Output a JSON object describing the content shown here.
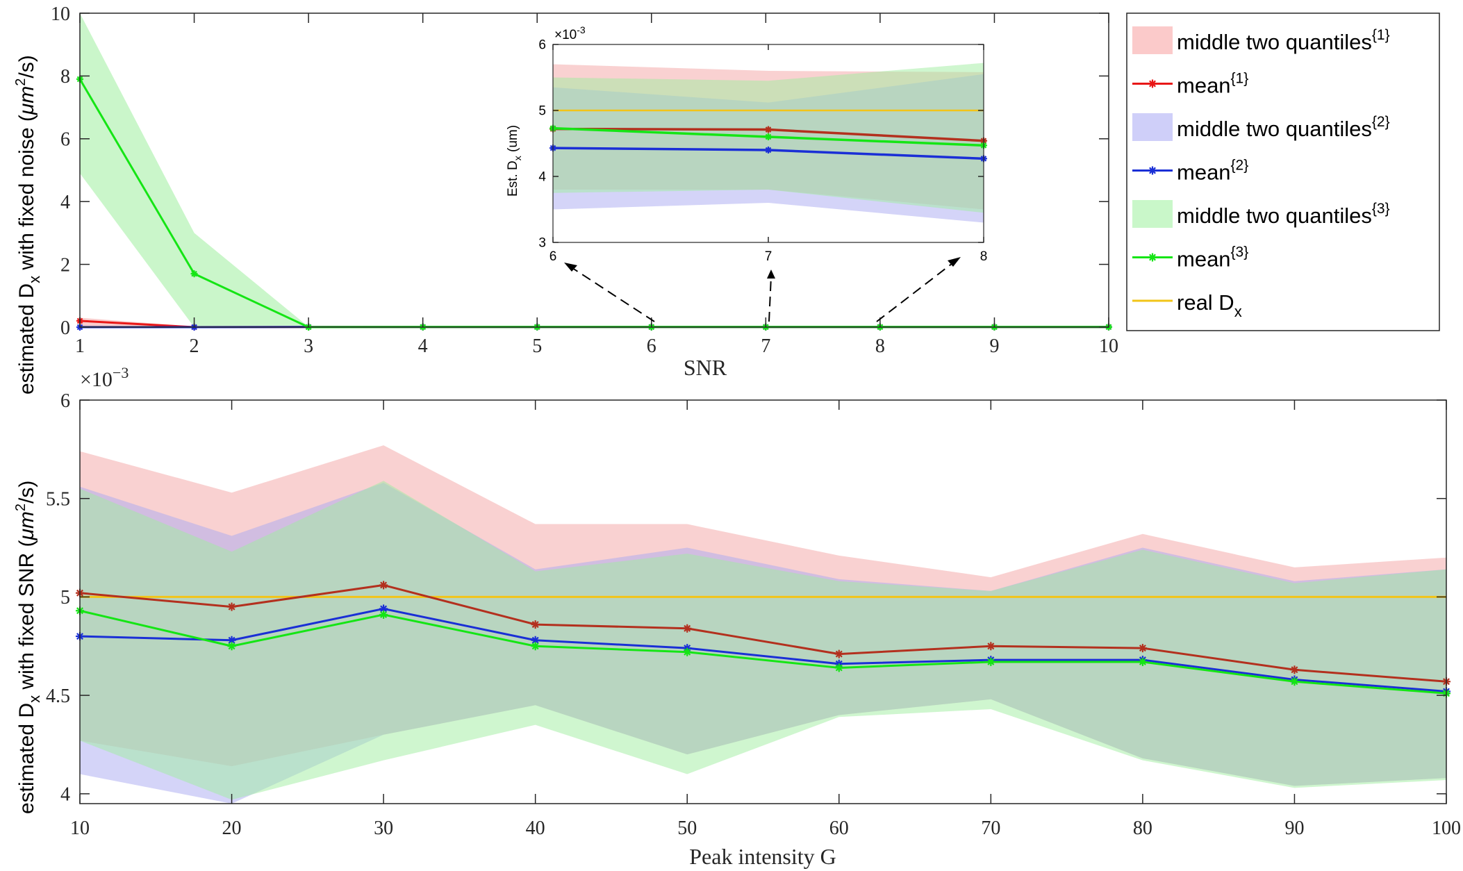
{
  "chart_data": [
    {
      "id": "top",
      "type": "line",
      "xlabel": "SNR",
      "ylabel": "estimated D",
      "ylabel_sub": "x",
      "ylabel_rest": " with fixed noise (",
      "ylabel_unit": "μm",
      "ylabel_unit_sup": "2",
      "ylabel_unit_end": "/s)",
      "xlim": [
        1,
        10
      ],
      "ylim": [
        0,
        10
      ],
      "xticks": [
        "1",
        "2",
        "3",
        "4",
        "5",
        "6",
        "7",
        "8",
        "9",
        "10"
      ],
      "yticks": [
        "0",
        "2",
        "4",
        "6",
        "8",
        "10"
      ],
      "x": [
        1,
        2,
        3,
        4,
        5,
        6,
        7,
        8,
        9,
        10
      ],
      "bands": [
        {
          "name": "middle two quantiles{1}",
          "color": "#f4a3a3",
          "lower": [
            0,
            0,
            0,
            0,
            0,
            0,
            0,
            0,
            0,
            0
          ],
          "upper": [
            0.3,
            0.02,
            0.01,
            0.01,
            0.01,
            0.01,
            0.01,
            0.01,
            0.01,
            0.01
          ]
        },
        {
          "name": "middle two quantiles{2}",
          "color": "#a9a9f2",
          "lower": [
            0,
            0,
            0,
            0,
            0,
            0,
            0,
            0,
            0,
            0
          ],
          "upper": [
            0.05,
            0.01,
            0.01,
            0.01,
            0.01,
            0.01,
            0.01,
            0.01,
            0.01,
            0.01
          ]
        },
        {
          "name": "middle two quantiles{3}",
          "color": "#9fee9f",
          "lower": [
            4.9,
            0,
            0,
            0,
            0,
            0,
            0,
            0,
            0,
            0
          ],
          "upper": [
            10.2,
            3.0,
            0.01,
            0.01,
            0.01,
            0.01,
            0.01,
            0.01,
            0.01,
            0.01
          ]
        }
      ],
      "series": [
        {
          "name": "mean{1}",
          "color": "#e81717",
          "values": [
            0.2,
            0.0,
            0.005,
            0.005,
            0.005,
            0.005,
            0.005,
            0.005,
            0.005,
            0.005
          ]
        },
        {
          "name": "mean{2}",
          "color": "#1a2fd6",
          "values": [
            0.0,
            0.0,
            0.005,
            0.005,
            0.005,
            0.005,
            0.005,
            0.005,
            0.005,
            0.005
          ]
        },
        {
          "name": "mean{3}",
          "color": "#15e515",
          "values": [
            7.9,
            1.7,
            0.0,
            0.005,
            0.005,
            0.005,
            0.005,
            0.005,
            0.005,
            0.005
          ]
        }
      ],
      "reference": {
        "name": "real Dx",
        "color": "#f2c418",
        "value": 0.005
      }
    },
    {
      "id": "inset",
      "type": "line",
      "ylabel": "Est. D",
      "ylabel_sub": "x",
      "ylabel_rest": "  (um)",
      "exponent": "×10",
      "exponent_power": "-3",
      "xlim": [
        6,
        8
      ],
      "ylim": [
        3,
        6
      ],
      "xticks": [
        "6",
        "7",
        "8"
      ],
      "yticks": [
        "3",
        "4",
        "5",
        "6"
      ],
      "x": [
        6,
        7,
        8
      ],
      "bands": [
        {
          "name": "middle two quantiles{1}",
          "color": "#f4a3a3",
          "lower": [
            3.8,
            3.8,
            3.5
          ],
          "upper": [
            5.7,
            5.6,
            5.58
          ]
        },
        {
          "name": "middle two quantiles{2}",
          "color": "#a9a9f2",
          "lower": [
            3.5,
            3.6,
            3.3
          ],
          "upper": [
            5.35,
            5.12,
            5.55
          ]
        },
        {
          "name": "middle two quantiles{3}",
          "color": "#9fee9f",
          "lower": [
            3.75,
            3.8,
            3.45
          ],
          "upper": [
            5.5,
            5.45,
            5.72
          ]
        }
      ],
      "series": [
        {
          "name": "mean{1}",
          "color": "#b3301e",
          "values": [
            4.72,
            4.71,
            4.54
          ]
        },
        {
          "name": "mean{2}",
          "color": "#1a2fd6",
          "values": [
            4.43,
            4.4,
            4.27
          ]
        },
        {
          "name": "mean{3}",
          "color": "#15e515",
          "values": [
            4.73,
            4.6,
            4.47
          ]
        }
      ],
      "reference": {
        "name": "real Dx",
        "color": "#f2c418",
        "value": 5.0
      }
    },
    {
      "id": "bottom",
      "type": "line",
      "xlabel": "Peak intensity G",
      "ylabel": "estimated D",
      "ylabel_sub": "x",
      "ylabel_rest": " with fixed SNR (",
      "ylabel_unit": "μm",
      "ylabel_unit_sup": "2",
      "ylabel_unit_end": "/s)",
      "exponent": "×10",
      "exponent_power": "−3",
      "xlim": [
        10,
        100
      ],
      "ylim": [
        3.95,
        6.0
      ],
      "xticks": [
        "10",
        "20",
        "30",
        "40",
        "50",
        "60",
        "70",
        "80",
        "90",
        "100"
      ],
      "yticks": [
        "4",
        "4.5",
        "5",
        "5.5",
        "6"
      ],
      "x": [
        10,
        20,
        30,
        40,
        50,
        60,
        70,
        80,
        90,
        100
      ],
      "bands": [
        {
          "name": "middle two quantiles{1}",
          "color": "#f4a3a3",
          "lower": [
            4.27,
            4.14,
            4.3,
            4.45,
            4.2,
            4.4,
            4.48,
            4.18,
            4.04,
            4.08
          ],
          "upper": [
            5.74,
            5.53,
            5.77,
            5.37,
            5.37,
            5.21,
            5.1,
            5.32,
            5.15,
            5.2
          ]
        },
        {
          "name": "middle two quantiles{2}",
          "color": "#a9a9f2",
          "lower": [
            4.1,
            3.93,
            4.3,
            4.45,
            4.2,
            4.4,
            4.48,
            4.18,
            4.04,
            4.08
          ],
          "upper": [
            5.56,
            5.31,
            5.58,
            5.14,
            5.25,
            5.09,
            5.03,
            5.25,
            5.08,
            5.14
          ]
        },
        {
          "name": "middle two quantiles{3}",
          "color": "#9fee9f",
          "lower": [
            4.27,
            3.97,
            4.17,
            4.35,
            4.1,
            4.39,
            4.43,
            4.17,
            4.03,
            4.07
          ],
          "upper": [
            5.55,
            5.23,
            5.59,
            5.13,
            5.22,
            5.08,
            5.03,
            5.24,
            5.07,
            5.14
          ]
        }
      ],
      "series": [
        {
          "name": "mean{1}",
          "color": "#b3301e",
          "values": [
            5.02,
            4.95,
            5.06,
            4.86,
            4.84,
            4.71,
            4.75,
            4.74,
            4.63,
            4.57
          ]
        },
        {
          "name": "mean{2}",
          "color": "#1a2fd6",
          "values": [
            4.8,
            4.78,
            4.94,
            4.78,
            4.74,
            4.66,
            4.68,
            4.68,
            4.58,
            4.52
          ]
        },
        {
          "name": "mean{3}",
          "color": "#15e515",
          "values": [
            4.93,
            4.75,
            4.91,
            4.75,
            4.72,
            4.64,
            4.67,
            4.67,
            4.57,
            4.51
          ]
        }
      ],
      "reference": {
        "name": "real Dx",
        "color": "#f2c418",
        "value": 5.0
      }
    }
  ],
  "legend": {
    "items": [
      {
        "kind": "patch",
        "label": "middle two quantiles",
        "sup": "{1}",
        "color": "#fbcaca"
      },
      {
        "kind": "line",
        "label": "mean",
        "sup": "{1}",
        "color": "#e81717"
      },
      {
        "kind": "patch",
        "label": "middle two quantiles",
        "sup": "{2}",
        "color": "#cfcff9"
      },
      {
        "kind": "line",
        "label": "mean",
        "sup": "{2}",
        "color": "#1a2fd6"
      },
      {
        "kind": "patch",
        "label": "middle two quantiles",
        "sup": "{3}",
        "color": "#c9f7c9"
      },
      {
        "kind": "line",
        "label": "mean",
        "sup": "{3}",
        "color": "#15e515"
      },
      {
        "kind": "ref",
        "label": "real D",
        "sub": "x",
        "color": "#f2c418"
      }
    ]
  }
}
